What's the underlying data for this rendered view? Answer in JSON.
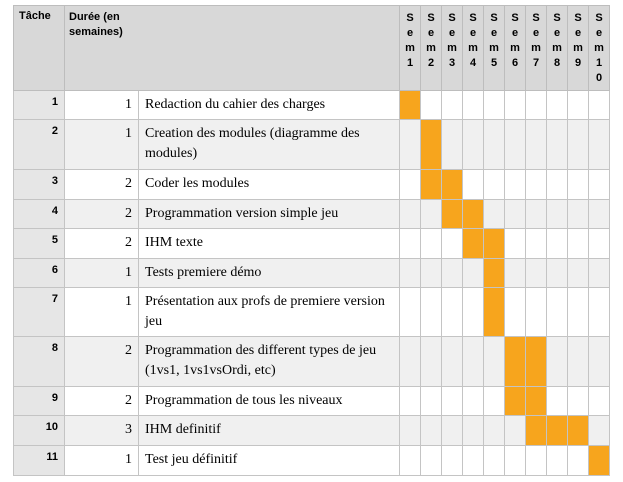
{
  "header": {
    "task": "Tâche",
    "duration": "Durée (en semaines)",
    "weeks": [
      "Sem1",
      "Sem2",
      "Sem3",
      "Sem4",
      "Sem5",
      "Sem6",
      "Sem7",
      "Sem8",
      "Sem9",
      "Sem10"
    ]
  },
  "rows": [
    {
      "num": "1",
      "dur": "1",
      "name": "Redaction du cahier des charges",
      "active": [
        1
      ]
    },
    {
      "num": "2",
      "dur": "1",
      "name": "Creation des modules (diagramme des modules)",
      "active": [
        2
      ]
    },
    {
      "num": "3",
      "dur": "2",
      "name": "Coder les modules",
      "active": [
        2,
        3
      ]
    },
    {
      "num": "4",
      "dur": "2",
      "name": "Programmation version simple jeu",
      "active": [
        3,
        4
      ]
    },
    {
      "num": "5",
      "dur": "2",
      "name": "IHM texte",
      "active": [
        4,
        5
      ]
    },
    {
      "num": "6",
      "dur": "1",
      "name": "Tests premiere démo",
      "active": [
        5
      ]
    },
    {
      "num": "7",
      "dur": "1",
      "name": "Présentation aux profs de premiere version jeu",
      "active": [
        5
      ]
    },
    {
      "num": "8",
      "dur": "2",
      "name": "Programmation des different types de jeu (1vs1, 1vs1vsOrdi, etc)",
      "active": [
        6,
        7
      ]
    },
    {
      "num": "9",
      "dur": "2",
      "name": "Programmation de tous les niveaux",
      "active": [
        6,
        7
      ]
    },
    {
      "num": "10",
      "dur": "3",
      "name": "IHM definitif",
      "active": [
        7,
        8,
        9
      ]
    },
    {
      "num": "11",
      "dur": "1",
      "name": "Test jeu définitif",
      "active": [
        10
      ]
    }
  ],
  "colors": {
    "bar": "#f7a51d",
    "header_bg": "#d8d8d8"
  }
}
